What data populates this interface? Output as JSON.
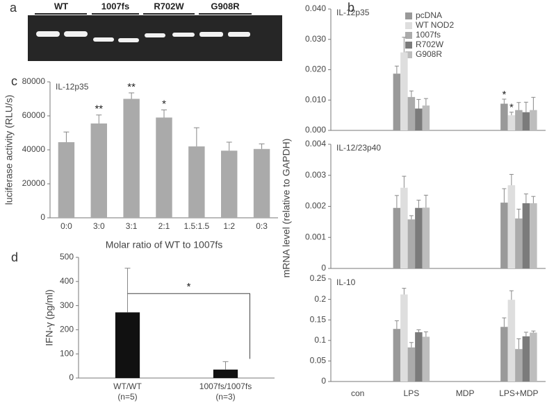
{
  "gel": {
    "panel_label": "a",
    "lanes": [
      "WT",
      "1007fs",
      "R702W",
      "G908R"
    ]
  },
  "chart_data": [
    {
      "type": "bar",
      "panel_label": "c",
      "title": "IL-12p35",
      "x_label": "Molar ratio of WT to 1007fs",
      "y_label": "luciferase activity (RLU/s)",
      "categories": [
        "0:0",
        "3:0",
        "3:1",
        "2:1",
        "1.5:1.5",
        "1:2",
        "0:3"
      ],
      "values": [
        44500,
        55500,
        70000,
        59000,
        42000,
        39500,
        40500
      ],
      "errors": [
        6000,
        5000,
        3500,
        4500,
        11000,
        5000,
        3000
      ],
      "significance": [
        null,
        "**",
        "**",
        "*",
        null,
        null,
        null
      ],
      "color": "#aaaaaa",
      "ylim": [
        0,
        80000
      ],
      "yticks": [
        0,
        20000,
        40000,
        60000,
        80000
      ]
    },
    {
      "type": "bar",
      "panel_label": "d",
      "y_label": "IFN-γ (pg/ml)",
      "categories": [
        "WT/WT",
        "1007fs/1007fs"
      ],
      "category_notes": [
        "(n=5)",
        "(n=3)"
      ],
      "values": [
        272,
        35
      ],
      "errors": [
        183,
        33
      ],
      "comparison_label": "*",
      "color": "#111111",
      "ylim": [
        0,
        500
      ],
      "yticks": [
        0,
        100,
        200,
        300,
        400,
        500
      ]
    },
    {
      "type": "grouped-bar-panels",
      "panel_label": "b",
      "y_label": "mRNA level (relative to GAPDH)",
      "categories": [
        "con",
        "LPS",
        "MDP",
        "LPS+MDP"
      ],
      "series": [
        {
          "name": "pcDNA",
          "color": "#999999"
        },
        {
          "name": "WT NOD2",
          "color": "#dedede"
        },
        {
          "name": "1007fs",
          "color": "#ababab"
        },
        {
          "name": "R702W",
          "color": "#7b7b7b"
        },
        {
          "name": "G908R",
          "color": "#bdbdbd"
        }
      ],
      "panels": [
        {
          "title": "IL-12p35",
          "ylim": [
            0,
            0.04
          ],
          "yticks": [
            {
              "value": 0,
              "label": "0.000"
            },
            {
              "value": 0.01,
              "label": "0.010"
            },
            {
              "value": 0.02,
              "label": "0.020"
            },
            {
              "value": 0.03,
              "label": "0.030"
            },
            {
              "value": 0.04,
              "label": "0.040"
            }
          ],
          "values": [
            [
              null,
              0.0187,
              null,
              0.0088
            ],
            [
              null,
              0.0257,
              null,
              0.005
            ],
            [
              null,
              0.011,
              null,
              0.0067
            ],
            [
              null,
              0.0072,
              null,
              0.006
            ],
            [
              null,
              0.0082,
              null,
              0.0067
            ]
          ],
          "errors": [
            [
              null,
              0.0025,
              null,
              0.0015
            ],
            [
              null,
              0.005,
              null,
              0.001
            ],
            [
              null,
              0.002,
              null,
              0.0025
            ],
            [
              null,
              0.003,
              null,
              0.0033
            ],
            [
              null,
              0.0023,
              null,
              0.0042
            ]
          ],
          "significance": [
            [
              null,
              null,
              null,
              "*"
            ],
            [
              null,
              null,
              null,
              "*"
            ],
            [
              null,
              null,
              null,
              null
            ],
            [
              null,
              null,
              null,
              null
            ],
            [
              null,
              null,
              null,
              null
            ]
          ]
        },
        {
          "title": "IL-12/23p40",
          "ylim": [
            0,
            0.004
          ],
          "yticks": [
            0,
            0.001,
            0.002,
            0.003,
            0.004
          ],
          "values": [
            [
              null,
              0.00195,
              null,
              0.00212
            ],
            [
              null,
              0.0026,
              null,
              0.00268
            ],
            [
              null,
              0.00158,
              null,
              0.00161
            ],
            [
              null,
              0.00195,
              null,
              0.0021
            ],
            [
              null,
              0.00196,
              null,
              0.0021
            ]
          ],
          "errors": [
            [
              null,
              0.0004,
              null,
              0.00045
            ],
            [
              null,
              0.00037,
              null,
              0.00035
            ],
            [
              null,
              0.00012,
              null,
              0.0003
            ],
            [
              null,
              0.00025,
              null,
              0.0003
            ],
            [
              null,
              0.0004,
              null,
              0.00022
            ]
          ]
        },
        {
          "title": "IL-10",
          "ylim": [
            0,
            0.25
          ],
          "yticks": [
            0,
            0.05,
            0.1,
            0.15,
            0.2,
            0.25
          ],
          "values": [
            [
              null,
              0.128,
              null,
              0.133
            ],
            [
              null,
              0.212,
              null,
              0.199
            ],
            [
              null,
              0.083,
              null,
              0.079
            ],
            [
              null,
              0.12,
              null,
              0.11
            ],
            [
              null,
              0.109,
              null,
              0.119
            ]
          ],
          "errors": [
            [
              null,
              0.02,
              null,
              0.022
            ],
            [
              null,
              0.015,
              null,
              0.022
            ],
            [
              null,
              0.012,
              null,
              0.025
            ],
            [
              null,
              0.006,
              null,
              0.01
            ],
            [
              null,
              0.012,
              null,
              0.004
            ]
          ]
        }
      ]
    }
  ]
}
